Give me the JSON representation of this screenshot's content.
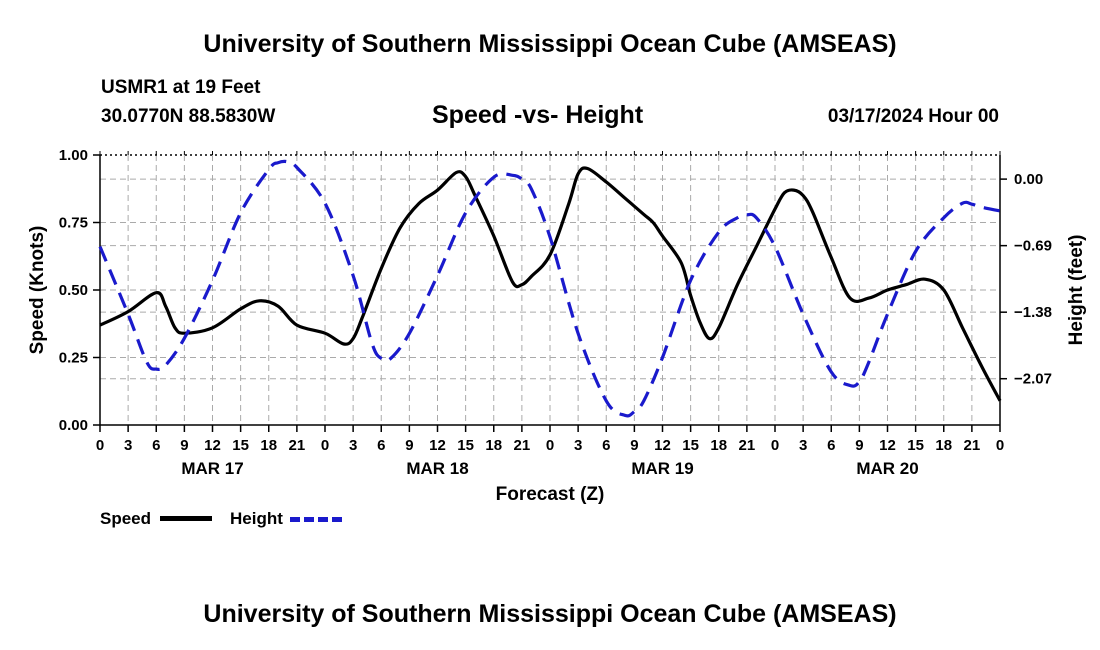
{
  "header": {
    "title": "University of Southern Mississippi Ocean Cube (AMSEAS)",
    "station": "USMR1 at 19 Feet",
    "coords": "30.0770N  88.5830W",
    "subtitle": "Speed -vs- Height",
    "datetime": "03/17/2024 Hour 00"
  },
  "footer": {
    "title": "University of Southern Mississippi Ocean Cube (AMSEAS)"
  },
  "legend": {
    "speed_label": "Speed",
    "height_label": "Height"
  },
  "colors": {
    "speed": "#000000",
    "height": "#1a1acc",
    "grid": "#aaaaaa"
  },
  "chart_data": {
    "type": "line",
    "xlabel": "Forecast (Z)",
    "ylabel_left": "Speed (Knots)",
    "ylabel_right": "Height (feet)",
    "x_range": [
      0,
      96
    ],
    "x_tick_labels": [
      "0",
      "3",
      "6",
      "9",
      "12",
      "15",
      "18",
      "21",
      "0",
      "3",
      "6",
      "9",
      "12",
      "15",
      "18",
      "21",
      "0",
      "3",
      "6",
      "9",
      "12",
      "15",
      "18",
      "21",
      "0",
      "3",
      "6",
      "9",
      "12",
      "15",
      "18",
      "21",
      "0"
    ],
    "day_labels": [
      {
        "label": "MAR 17",
        "hour": 12
      },
      {
        "label": "MAR 18",
        "hour": 36
      },
      {
        "label": "MAR 19",
        "hour": 60
      },
      {
        "label": "MAR 20",
        "hour": 84
      }
    ],
    "y_left": {
      "range": [
        0,
        1
      ],
      "ticks": [
        0.0,
        0.25,
        0.5,
        0.75,
        1.0
      ],
      "tick_labels": [
        "0.00",
        "0.25",
        "0.50",
        "0.75",
        "1.00"
      ]
    },
    "y_right": {
      "range": [
        -2.55,
        0.25
      ],
      "ticks": [
        0.0,
        -0.69,
        -1.38,
        -2.07
      ],
      "tick_labels": [
        "0.00",
        "−0.69",
        "−1.38",
        "−2.07"
      ]
    },
    "grid": true,
    "series": [
      {
        "name": "Speed",
        "axis": "left",
        "style": "solid",
        "x": [
          0,
          3,
          6,
          7,
          8,
          9,
          12,
          15,
          17,
          19,
          21,
          24,
          26,
          27,
          28,
          30,
          32,
          34,
          36,
          38,
          39,
          40,
          42,
          44,
          45,
          46,
          48,
          50,
          51,
          52,
          54,
          56,
          58,
          59,
          60,
          62,
          63,
          64,
          65,
          66,
          68,
          70,
          72,
          73,
          74,
          75,
          76,
          78,
          80,
          82,
          84,
          86,
          88,
          90,
          92,
          94,
          96
        ],
        "y": [
          0.37,
          0.42,
          0.49,
          0.44,
          0.36,
          0.34,
          0.36,
          0.43,
          0.46,
          0.44,
          0.37,
          0.34,
          0.3,
          0.32,
          0.4,
          0.58,
          0.73,
          0.82,
          0.87,
          0.935,
          0.92,
          0.85,
          0.7,
          0.53,
          0.52,
          0.55,
          0.63,
          0.82,
          0.93,
          0.95,
          0.9,
          0.84,
          0.78,
          0.75,
          0.7,
          0.6,
          0.48,
          0.38,
          0.32,
          0.36,
          0.52,
          0.66,
          0.8,
          0.86,
          0.87,
          0.85,
          0.79,
          0.62,
          0.47,
          0.47,
          0.5,
          0.52,
          0.54,
          0.5,
          0.36,
          0.22,
          0.09
        ]
      },
      {
        "name": "Height",
        "axis": "right",
        "style": "dashed",
        "x": [
          0,
          3,
          5,
          6,
          7,
          9,
          12,
          15,
          18,
          19,
          20,
          21,
          24,
          27,
          29,
          30,
          31,
          33,
          36,
          39,
          42,
          44,
          45,
          46,
          48,
          51,
          54,
          56,
          57,
          58,
          60,
          63,
          66,
          68,
          69,
          70,
          72,
          75,
          78,
          80,
          81,
          82,
          84,
          87,
          90,
          92,
          93,
          94,
          96
        ],
        "y": [
          -0.7,
          -1.4,
          -1.9,
          -1.97,
          -1.93,
          -1.65,
          -1.05,
          -0.35,
          0.1,
          0.17,
          0.18,
          0.12,
          -0.25,
          -1.0,
          -1.7,
          -1.86,
          -1.86,
          -1.6,
          -1.0,
          -0.35,
          0.02,
          0.04,
          0.0,
          -0.1,
          -0.6,
          -1.6,
          -2.3,
          -2.45,
          -2.41,
          -2.3,
          -1.85,
          -1.05,
          -0.55,
          -0.4,
          -0.37,
          -0.4,
          -0.7,
          -1.4,
          -2.0,
          -2.14,
          -2.1,
          -1.9,
          -1.4,
          -0.75,
          -0.4,
          -0.25,
          -0.26,
          -0.29,
          -0.33
        ]
      }
    ]
  }
}
